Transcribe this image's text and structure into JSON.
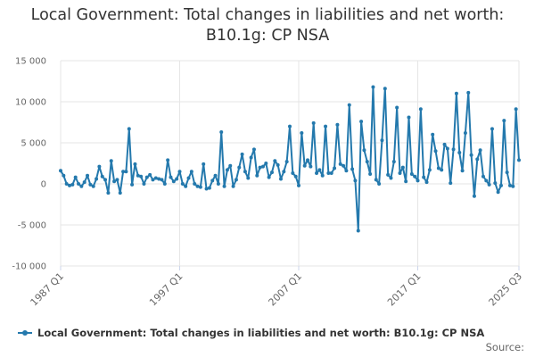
{
  "chart_data": {
    "type": "line",
    "title": "Local Government: Total changes in liabilities and net worth: B10.1g: CP NSA",
    "xlabel": "",
    "ylabel": "",
    "ylim": [
      -10000,
      15000
    ],
    "yticks": [
      -10000,
      -5000,
      0,
      5000,
      10000,
      15000
    ],
    "ytick_labels": [
      "-10 000",
      "-5 000",
      "0",
      "5 000",
      "10 000",
      "15 000"
    ],
    "xtick_labels": [
      "1987 Q1",
      "1997 Q1",
      "2007 Q1",
      "2017 Q1",
      "2025 Q3"
    ],
    "xtick_index": [
      0,
      40,
      80,
      120,
      154
    ],
    "grid": true,
    "legend_position": "bottom-left",
    "series": [
      {
        "name": "Local Government: Total changes in liabilities and net worth: B10.1g: CP NSA",
        "color": "#2479ad",
        "values": [
          1600,
          1000,
          0,
          -200,
          -100,
          800,
          0,
          -300,
          200,
          1000,
          -100,
          -300,
          600,
          2100,
          900,
          500,
          -1100,
          2800,
          300,
          500,
          -1100,
          1500,
          1500,
          6700,
          -100,
          2400,
          1000,
          900,
          0,
          800,
          1100,
          500,
          700,
          600,
          500,
          0,
          2900,
          800,
          300,
          600,
          1500,
          0,
          -300,
          700,
          1500,
          0,
          -300,
          -400,
          2400,
          -600,
          -500,
          400,
          1000,
          0,
          6300,
          -300,
          1700,
          2200,
          -300,
          500,
          2000,
          3600,
          1500,
          700,
          3200,
          4200,
          1000,
          2000,
          2100,
          2500,
          800,
          1400,
          2800,
          2300,
          600,
          1500,
          2700,
          7000,
          1300,
          900,
          -200,
          6200,
          2200,
          2900,
          2100,
          7400,
          1300,
          1700,
          1000,
          7000,
          1300,
          1300,
          1900,
          7200,
          2400,
          2200,
          1600,
          9600,
          1800,
          400,
          -5700,
          7600,
          4100,
          2700,
          1200,
          11800,
          500,
          0,
          5300,
          11600,
          1100,
          700,
          2700,
          9300,
          1300,
          2000,
          300,
          8100,
          1200,
          900,
          400,
          9100,
          800,
          200,
          1700,
          6000,
          4000,
          1900,
          1700,
          4800,
          4300,
          100,
          4200,
          11000,
          3800,
          1600,
          6200,
          11100,
          3500,
          -1500,
          3000,
          4100,
          900,
          400,
          -100,
          6700,
          100,
          -1000,
          -200,
          7700,
          1400,
          -200,
          -300,
          9100,
          2900
        ]
      }
    ],
    "source_label": "Source:"
  }
}
